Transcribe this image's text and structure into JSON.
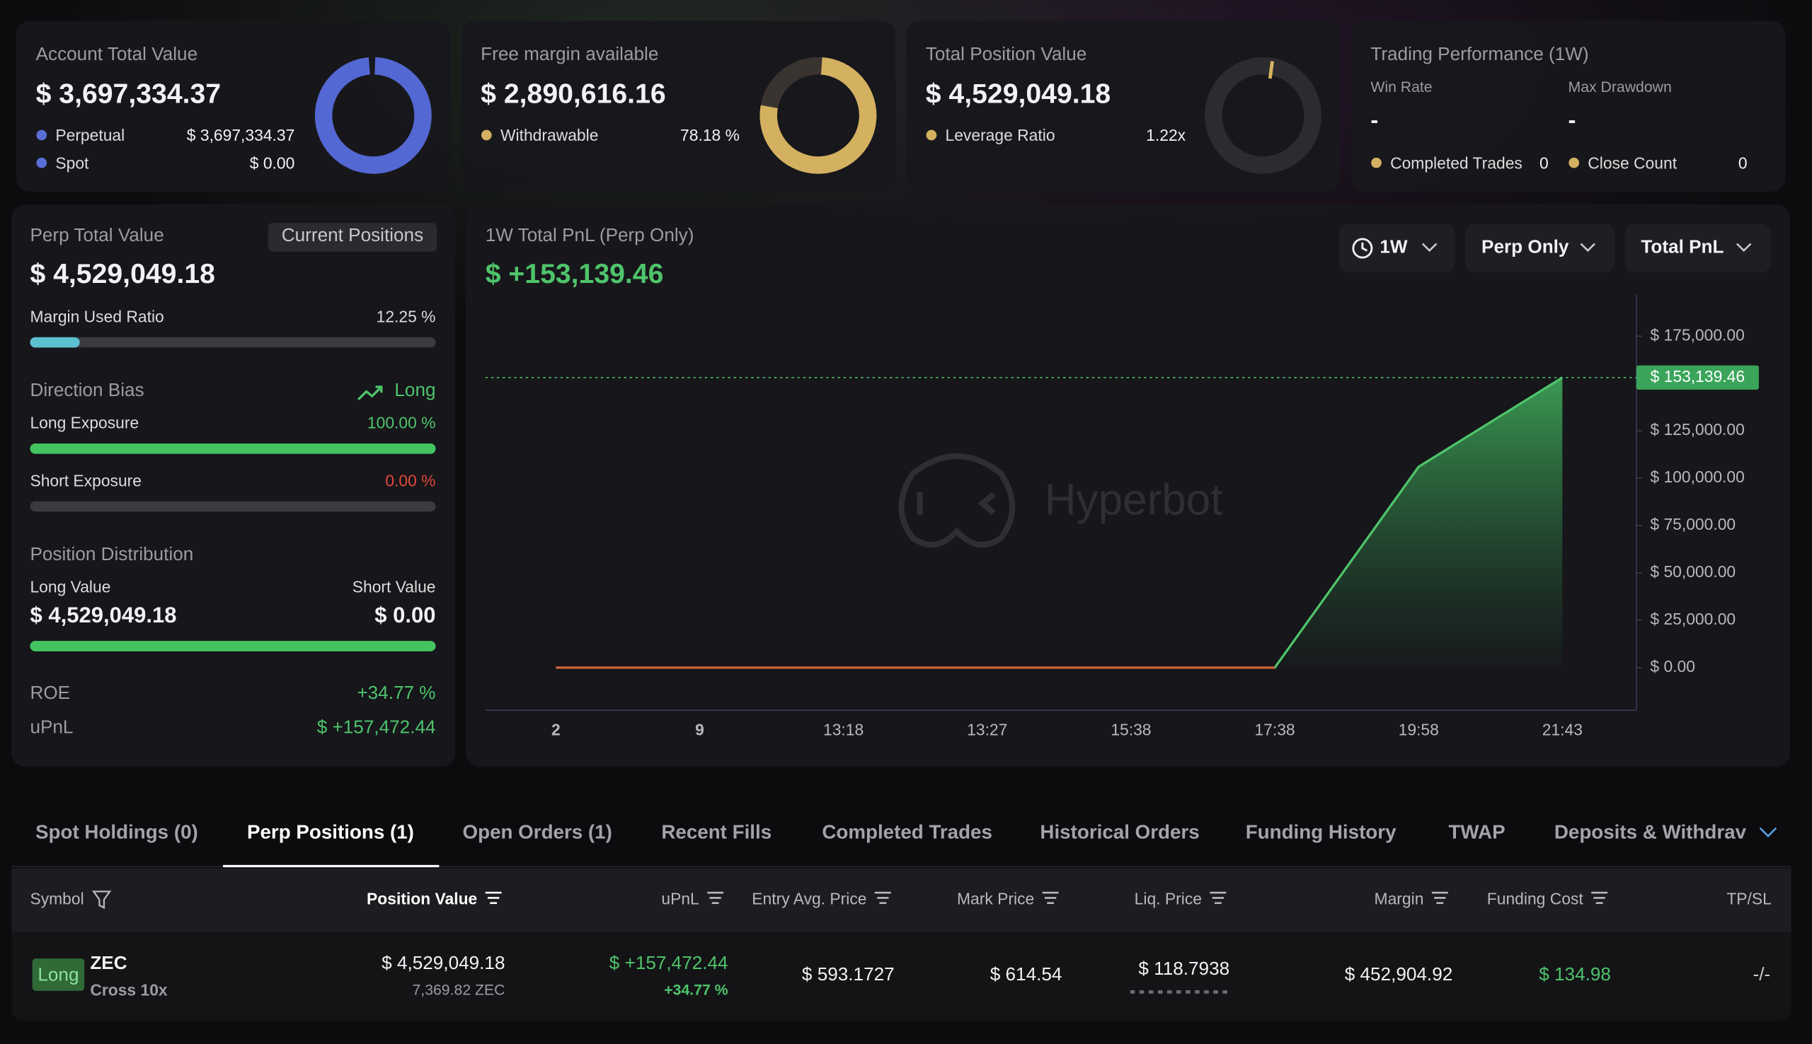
{
  "account": {
    "title": "Account Total Value",
    "value": "$ 3,697,334.37",
    "perpetual_label": "Perpetual",
    "perpetual_value": "$ 3,697,334.37",
    "spot_label": "Spot",
    "spot_value": "$ 0.00"
  },
  "free_margin": {
    "title": "Free margin available",
    "value": "$ 2,890,616.16",
    "withdrawable_label": "Withdrawable",
    "withdrawable": {
      "value": 78.18,
      "label": "78.18 %"
    }
  },
  "position": {
    "title": "Total Position Value",
    "value": "$ 4,529,049.18",
    "leverage_label": "Leverage Ratio",
    "leverage": "1.22x"
  },
  "performance": {
    "title": "Trading Performance (1W)",
    "win_rate_label": "Win Rate",
    "win_rate": "-",
    "max_drawdown_label": "Max Drawdown",
    "max_drawdown": "-",
    "completed_label": "Completed Trades",
    "completed": 0,
    "close_label": "Close Count",
    "close": 0
  },
  "perp": {
    "title": "Perp Total Value",
    "button": "Current Positions",
    "value": "$ 4,529,049.18",
    "margin_label": "Margin Used Ratio",
    "margin_ratio": {
      "value": 12.25,
      "label": "12.25 %"
    },
    "bias_label": "Direction Bias",
    "bias": "Long",
    "long_label": "Long Exposure",
    "long_exposure": {
      "value": 100,
      "label": "100.00 %"
    },
    "short_label": "Short Exposure",
    "short_exposure": {
      "value": 0,
      "label": "0.00 %"
    },
    "distribution_label": "Position Distribution",
    "long_value_label": "Long Value",
    "long_value": "$ 4,529,049.18",
    "short_value_label": "Short Value",
    "short_value": "$ 0.00",
    "roe_label": "ROE",
    "roe": "+34.77 %",
    "upnl_label": "uPnL",
    "upnl": "$ +157,472.44"
  },
  "chart_data": {
    "type": "area",
    "title": "1W Total PnL (Perp Only)",
    "total": "$ +153,139.46",
    "controls": [
      "1W",
      "Perp Only",
      "Total PnL"
    ],
    "watermark": "Hyperbot",
    "categories": [
      "2",
      "9",
      "13:18",
      "13:27",
      "15:38",
      "17:38",
      "19:58",
      "21:43"
    ],
    "values": [
      0,
      0,
      0,
      0,
      0,
      0,
      106000,
      153139.46
    ],
    "marker_label": "$ 153,139.46",
    "ylim": [
      -22500,
      197000
    ],
    "yticks": [
      {
        "value": 0,
        "label": "$ 0.00"
      },
      {
        "value": 25000,
        "label": "$ 25,000.00"
      },
      {
        "value": 50000,
        "label": "$ 50,000.00"
      },
      {
        "value": 75000,
        "label": "$ 75,000.00"
      },
      {
        "value": 100000,
        "label": "$ 100,000.00"
      },
      {
        "value": 125000,
        "label": "$ 125,000.00"
      },
      {
        "value": 175000,
        "label": "$ 175,000.00"
      }
    ]
  },
  "tabs": [
    "Spot Holdings (0)",
    "Perp Positions (1)",
    "Open Orders (1)",
    "Recent Fills",
    "Completed Trades",
    "Historical Orders",
    "Funding History",
    "TWAP",
    "Deposits & Withdrav"
  ],
  "active_tab": 1,
  "table": {
    "headers": [
      "Symbol",
      "Position Value",
      "uPnL",
      "Entry Avg. Price",
      "Mark Price",
      "Liq. Price",
      "Margin",
      "Funding Cost",
      "TP/SL"
    ],
    "rows": [
      {
        "side": "Long",
        "symbol": "ZEC",
        "mode": "Cross 10x",
        "position_value": "$ 4,529,049.18",
        "size": "7,369.82 ZEC",
        "upnl": "$ +157,472.44",
        "upnl_pct": "+34.77 %",
        "entry": "$ 593.1727",
        "mark": "$ 614.54",
        "liq": "$ 118.7938",
        "margin": "$ 452,904.92",
        "funding": "$ 134.98",
        "tpsl": "-/-"
      }
    ]
  }
}
